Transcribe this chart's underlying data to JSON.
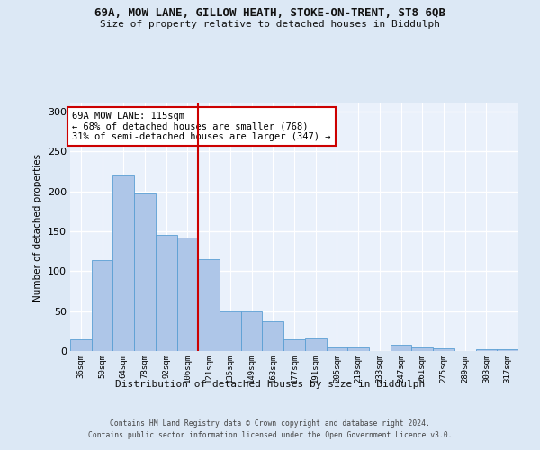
{
  "title_line1": "69A, MOW LANE, GILLOW HEATH, STOKE-ON-TRENT, ST8 6QB",
  "title_line2": "Size of property relative to detached houses in Biddulph",
  "xlabel": "Distribution of detached houses by size in Biddulph",
  "ylabel": "Number of detached properties",
  "categories": [
    "36sqm",
    "50sqm",
    "64sqm",
    "78sqm",
    "92sqm",
    "106sqm",
    "121sqm",
    "135sqm",
    "149sqm",
    "163sqm",
    "177sqm",
    "191sqm",
    "205sqm",
    "219sqm",
    "233sqm",
    "247sqm",
    "261sqm",
    "275sqm",
    "289sqm",
    "303sqm",
    "317sqm"
  ],
  "values": [
    15,
    114,
    220,
    197,
    145,
    142,
    115,
    50,
    50,
    37,
    15,
    16,
    4,
    4,
    0,
    8,
    4,
    3,
    0,
    2,
    2
  ],
  "bar_color": "#aec6e8",
  "bar_edge_color": "#5a9fd4",
  "redline_index": 6,
  "annotation_text": "69A MOW LANE: 115sqm\n← 68% of detached houses are smaller (768)\n31% of semi-detached houses are larger (347) →",
  "annotation_box_color": "#ffffff",
  "annotation_box_edge": "#cc0000",
  "ylim": [
    0,
    310
  ],
  "yticks": [
    0,
    50,
    100,
    150,
    200,
    250,
    300
  ],
  "footer_line1": "Contains HM Land Registry data © Crown copyright and database right 2024.",
  "footer_line2": "Contains public sector information licensed under the Open Government Licence v3.0.",
  "bg_color": "#dce8f5",
  "plot_bg_color": "#eaf1fb",
  "grid_color": "#ffffff"
}
